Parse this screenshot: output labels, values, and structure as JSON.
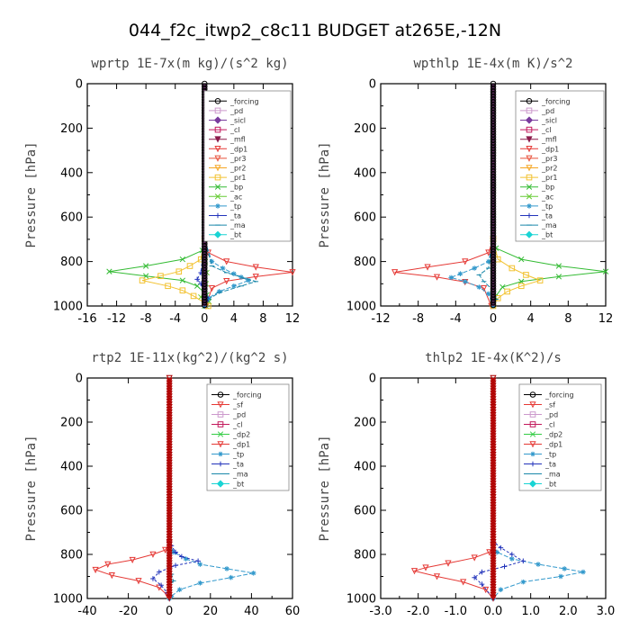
{
  "figure_title": "044_f2c_itwp2_c8c11  BUDGET at265E,-12N",
  "colors": {
    "forcing": "#000000",
    "pd": "#cc99cc",
    "sicl": "#7a3b9e",
    "cl": "#c2185b",
    "mfl": "#8b1a4a",
    "dp1": "#e53935",
    "pr3": "#e8503a",
    "pr2": "#f5a623",
    "pr1": "#f2c230",
    "bp": "#33bb33",
    "ac": "#66cc33",
    "tp": "#3399cc",
    "ta": "#2233bb",
    "ma": "#1a88aa",
    "bt": "#19d4d4",
    "sf": "#e53935",
    "dp2": "#33cc44"
  },
  "chart_data": [
    {
      "type": "line",
      "title": "wprtp   1E-7x(m kg)/(s^2 kg)",
      "ylabel": "Pressure [hPa]",
      "xlim": [
        -16,
        12
      ],
      "xticks": [
        "-16",
        "-12",
        "-8",
        "-4",
        "0",
        "4",
        "8",
        "12"
      ],
      "ylim": [
        1000,
        0
      ],
      "yticks": [
        "0",
        "200",
        "400",
        "600",
        "800",
        "1000"
      ],
      "legend": [
        "_forcing",
        "_pd",
        "_sicl",
        "_cl",
        "_mfl",
        "_dp1",
        "_pr3",
        "_pr2",
        "_pr1",
        "_bp",
        "_ac",
        "_tp",
        "_ta",
        "_ma",
        "_bt"
      ],
      "series": [
        {
          "name": "_bp",
          "x": [
            0,
            0,
            -0.3,
            -3,
            -8,
            -13,
            -8,
            -3,
            -1,
            0.3,
            0.6,
            0.2
          ],
          "y": [
            0,
            700,
            750,
            790,
            820,
            845,
            865,
            885,
            910,
            950,
            980,
            1000
          ]
        },
        {
          "name": "_ac",
          "x": [
            0,
            0,
            0.1,
            0.3,
            0.2,
            0,
            -0.5,
            0.3,
            0
          ],
          "y": [
            0,
            700,
            800,
            850,
            900,
            930,
            960,
            990,
            1000
          ]
        },
        {
          "name": "_dp1",
          "x": [
            0,
            0,
            0.5,
            3,
            7,
            12,
            7,
            3,
            1,
            0.2
          ],
          "y": [
            0,
            700,
            760,
            800,
            825,
            848,
            868,
            888,
            920,
            1000
          ]
        },
        {
          "name": "_pr1",
          "x": [
            0,
            0,
            -0.5,
            -2,
            -3.5,
            -6,
            -8.5,
            -5,
            -3,
            -1.5,
            0,
            0.5
          ],
          "y": [
            0,
            700,
            790,
            820,
            845,
            865,
            885,
            910,
            930,
            955,
            985,
            1000
          ]
        },
        {
          "name": "_tp",
          "x": [
            0,
            0,
            1,
            2.5,
            4,
            5,
            6,
            4,
            2,
            0.5,
            0
          ],
          "y": [
            0,
            700,
            800,
            830,
            855,
            870,
            885,
            910,
            935,
            965,
            1000
          ]
        },
        {
          "name": "_ta",
          "x": [
            0,
            0,
            -0.5,
            -1,
            -0.5,
            0,
            0.5,
            0
          ],
          "y": [
            0,
            700,
            850,
            880,
            900,
            930,
            970,
            1000
          ]
        },
        {
          "name": "_ma",
          "x": [
            0,
            0,
            1,
            3,
            5.5,
            7,
            5,
            2,
            0.5,
            0
          ],
          "y": [
            0,
            700,
            820,
            850,
            875,
            890,
            910,
            940,
            970,
            1000
          ]
        },
        {
          "name": "_forcing",
          "x": [
            0,
            0
          ],
          "y": [
            0,
            1000
          ]
        }
      ]
    },
    {
      "type": "line",
      "title": "wpthlp   1E-4x(m K)/s^2",
      "ylabel": "Pressure [hPa]",
      "xlim": [
        -12,
        12
      ],
      "xticks": [
        "-12",
        "-8",
        "-4",
        "0",
        "4",
        "8",
        "12"
      ],
      "ylim": [
        1000,
        0
      ],
      "yticks": [
        "0",
        "200",
        "400",
        "600",
        "800",
        "1000"
      ],
      "legend": [
        "_forcing",
        "_pd",
        "_sicl",
        "_cl",
        "_mfl",
        "_dp1",
        "_pr3",
        "_pr2",
        "_pr1",
        "_bp",
        "_ac",
        "_tp",
        "_ta",
        "_ma",
        "_bt"
      ],
      "series": [
        {
          "name": "_bp",
          "x": [
            0,
            0,
            0.3,
            3,
            7,
            12,
            7,
            3,
            1,
            0.2,
            0
          ],
          "y": [
            0,
            700,
            740,
            790,
            820,
            845,
            868,
            890,
            915,
            960,
            1000
          ]
        },
        {
          "name": "_dp1",
          "x": [
            0,
            0,
            -0.5,
            -3,
            -7,
            -10.5,
            -6,
            -3,
            -1,
            -0.2
          ],
          "y": [
            0,
            700,
            760,
            800,
            825,
            848,
            870,
            892,
            920,
            1000
          ]
        },
        {
          "name": "_pr1",
          "x": [
            0,
            0,
            0.5,
            2,
            3.5,
            5,
            3,
            1.5,
            0.5,
            0
          ],
          "y": [
            0,
            700,
            790,
            830,
            860,
            885,
            910,
            935,
            965,
            1000
          ]
        },
        {
          "name": "_tp",
          "x": [
            0,
            0,
            -0.5,
            -2,
            -3.5,
            -4.5,
            -3,
            -1.5,
            -0.5,
            0
          ],
          "y": [
            0,
            700,
            800,
            830,
            855,
            872,
            890,
            915,
            945,
            1000
          ]
        },
        {
          "name": "_ma",
          "x": [
            0,
            0,
            -0.5,
            -1.5,
            -1,
            0,
            0.3,
            0
          ],
          "y": [
            0,
            700,
            830,
            860,
            890,
            930,
            970,
            1000
          ]
        },
        {
          "name": "_forcing",
          "x": [
            0,
            0
          ],
          "y": [
            0,
            1000
          ]
        }
      ]
    },
    {
      "type": "line",
      "title": "rtp2   1E-11x(kg^2)/(kg^2 s)",
      "ylabel": "Pressure [hPa]",
      "xlim": [
        -40,
        60
      ],
      "xticks": [
        "-40",
        "-20",
        "0",
        "20",
        "40",
        "60"
      ],
      "ylim": [
        1000,
        0
      ],
      "yticks": [
        "0",
        "200",
        "400",
        "600",
        "800",
        "1000"
      ],
      "legend": [
        "_forcing",
        "_sf",
        "_pd",
        "_cl",
        "_dp2",
        "_dp1",
        "_tp",
        "_ta",
        "_ma",
        "_bt"
      ],
      "series": [
        {
          "name": "_dp1",
          "x": [
            0,
            0,
            -2,
            -8,
            -18,
            -30,
            -36,
            -28,
            -15,
            -5,
            -1,
            0
          ],
          "y": [
            0,
            750,
            780,
            800,
            825,
            845,
            870,
            895,
            920,
            950,
            985,
            1000
          ]
        },
        {
          "name": "_tp",
          "x": [
            0,
            0,
            2,
            8,
            15,
            28,
            41,
            30,
            15,
            5,
            1,
            0
          ],
          "y": [
            0,
            750,
            790,
            820,
            845,
            865,
            885,
            905,
            930,
            960,
            990,
            1000
          ]
        },
        {
          "name": "_ta",
          "x": [
            0,
            0,
            1,
            3,
            6,
            14,
            3,
            -5,
            -8,
            -4,
            -1,
            0
          ],
          "y": [
            0,
            740,
            760,
            790,
            810,
            830,
            850,
            880,
            910,
            940,
            975,
            1000
          ]
        },
        {
          "name": "_ma",
          "x": [
            0,
            0,
            0,
            1,
            2,
            0,
            0
          ],
          "y": [
            0,
            800,
            860,
            890,
            920,
            960,
            1000
          ]
        },
        {
          "name": "_forcing",
          "x": [
            0,
            0
          ],
          "y": [
            0,
            1000
          ]
        }
      ]
    },
    {
      "type": "line",
      "title": "thlp2   1E-4x(K^2)/s",
      "ylabel": "Pressure [hPa]",
      "xlim": [
        -3.0,
        3.0
      ],
      "xticks": [
        "-3.0",
        "-2.0",
        "-1.0",
        "0.0",
        "1.0",
        "2.0",
        "3.0"
      ],
      "ylim": [
        1000,
        0
      ],
      "yticks": [
        "0",
        "200",
        "400",
        "600",
        "800",
        "1000"
      ],
      "legend": [
        "_forcing",
        "_sf",
        "_pd",
        "_cl",
        "_dp2",
        "_dp1",
        "_tp",
        "_ta",
        "_ma",
        "_bt"
      ],
      "series": [
        {
          "name": "_dp1",
          "x": [
            0,
            0,
            -0.1,
            -0.5,
            -1.2,
            -1.8,
            -2.1,
            -1.5,
            -0.8,
            -0.2,
            0
          ],
          "y": [
            0,
            760,
            790,
            815,
            840,
            860,
            875,
            900,
            925,
            960,
            1000
          ]
        },
        {
          "name": "_tp",
          "x": [
            0,
            0,
            0.1,
            0.5,
            1.2,
            1.9,
            2.4,
            1.8,
            0.8,
            0.2,
            0
          ],
          "y": [
            0,
            760,
            790,
            820,
            845,
            865,
            880,
            900,
            925,
            960,
            1000
          ]
        },
        {
          "name": "_ta",
          "x": [
            0,
            0,
            0.2,
            0.5,
            0.8,
            0.3,
            -0.3,
            -0.5,
            -0.3,
            0
          ],
          "y": [
            0,
            740,
            770,
            800,
            830,
            855,
            880,
            905,
            935,
            1000
          ]
        },
        {
          "name": "_forcing",
          "x": [
            0,
            0
          ],
          "y": [
            0,
            1000
          ]
        }
      ]
    }
  ]
}
